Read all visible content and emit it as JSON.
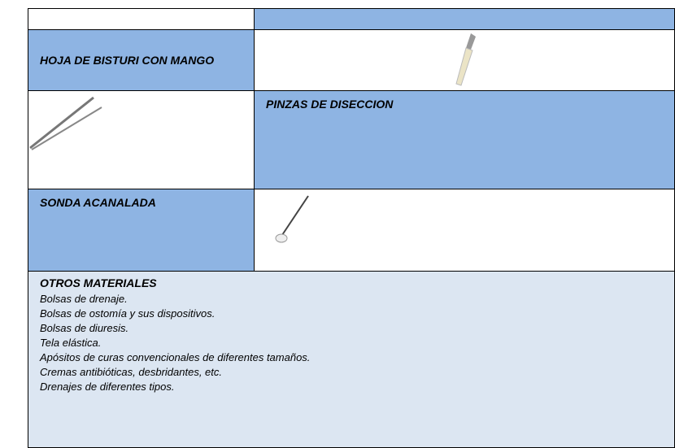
{
  "table": {
    "rows": [
      {
        "label": "HOJA DE BISTURI CON MANGO"
      },
      {
        "label": "PINZAS DE DISECCION"
      },
      {
        "label": "SONDA ACANALADA"
      }
    ]
  },
  "otros": {
    "title": "OTROS MATERIALES",
    "items": [
      "Bolsas de drenaje.",
      "Bolsas de ostomía y sus dispositivos.",
      "Bolsas de diuresis.",
      "Tela elástica.",
      "Apósitos de curas convencionales de diferentes tamaños.",
      "Cremas antibióticas, desbridantes, etc.",
      "Drenajes de diferentes tipos."
    ]
  }
}
